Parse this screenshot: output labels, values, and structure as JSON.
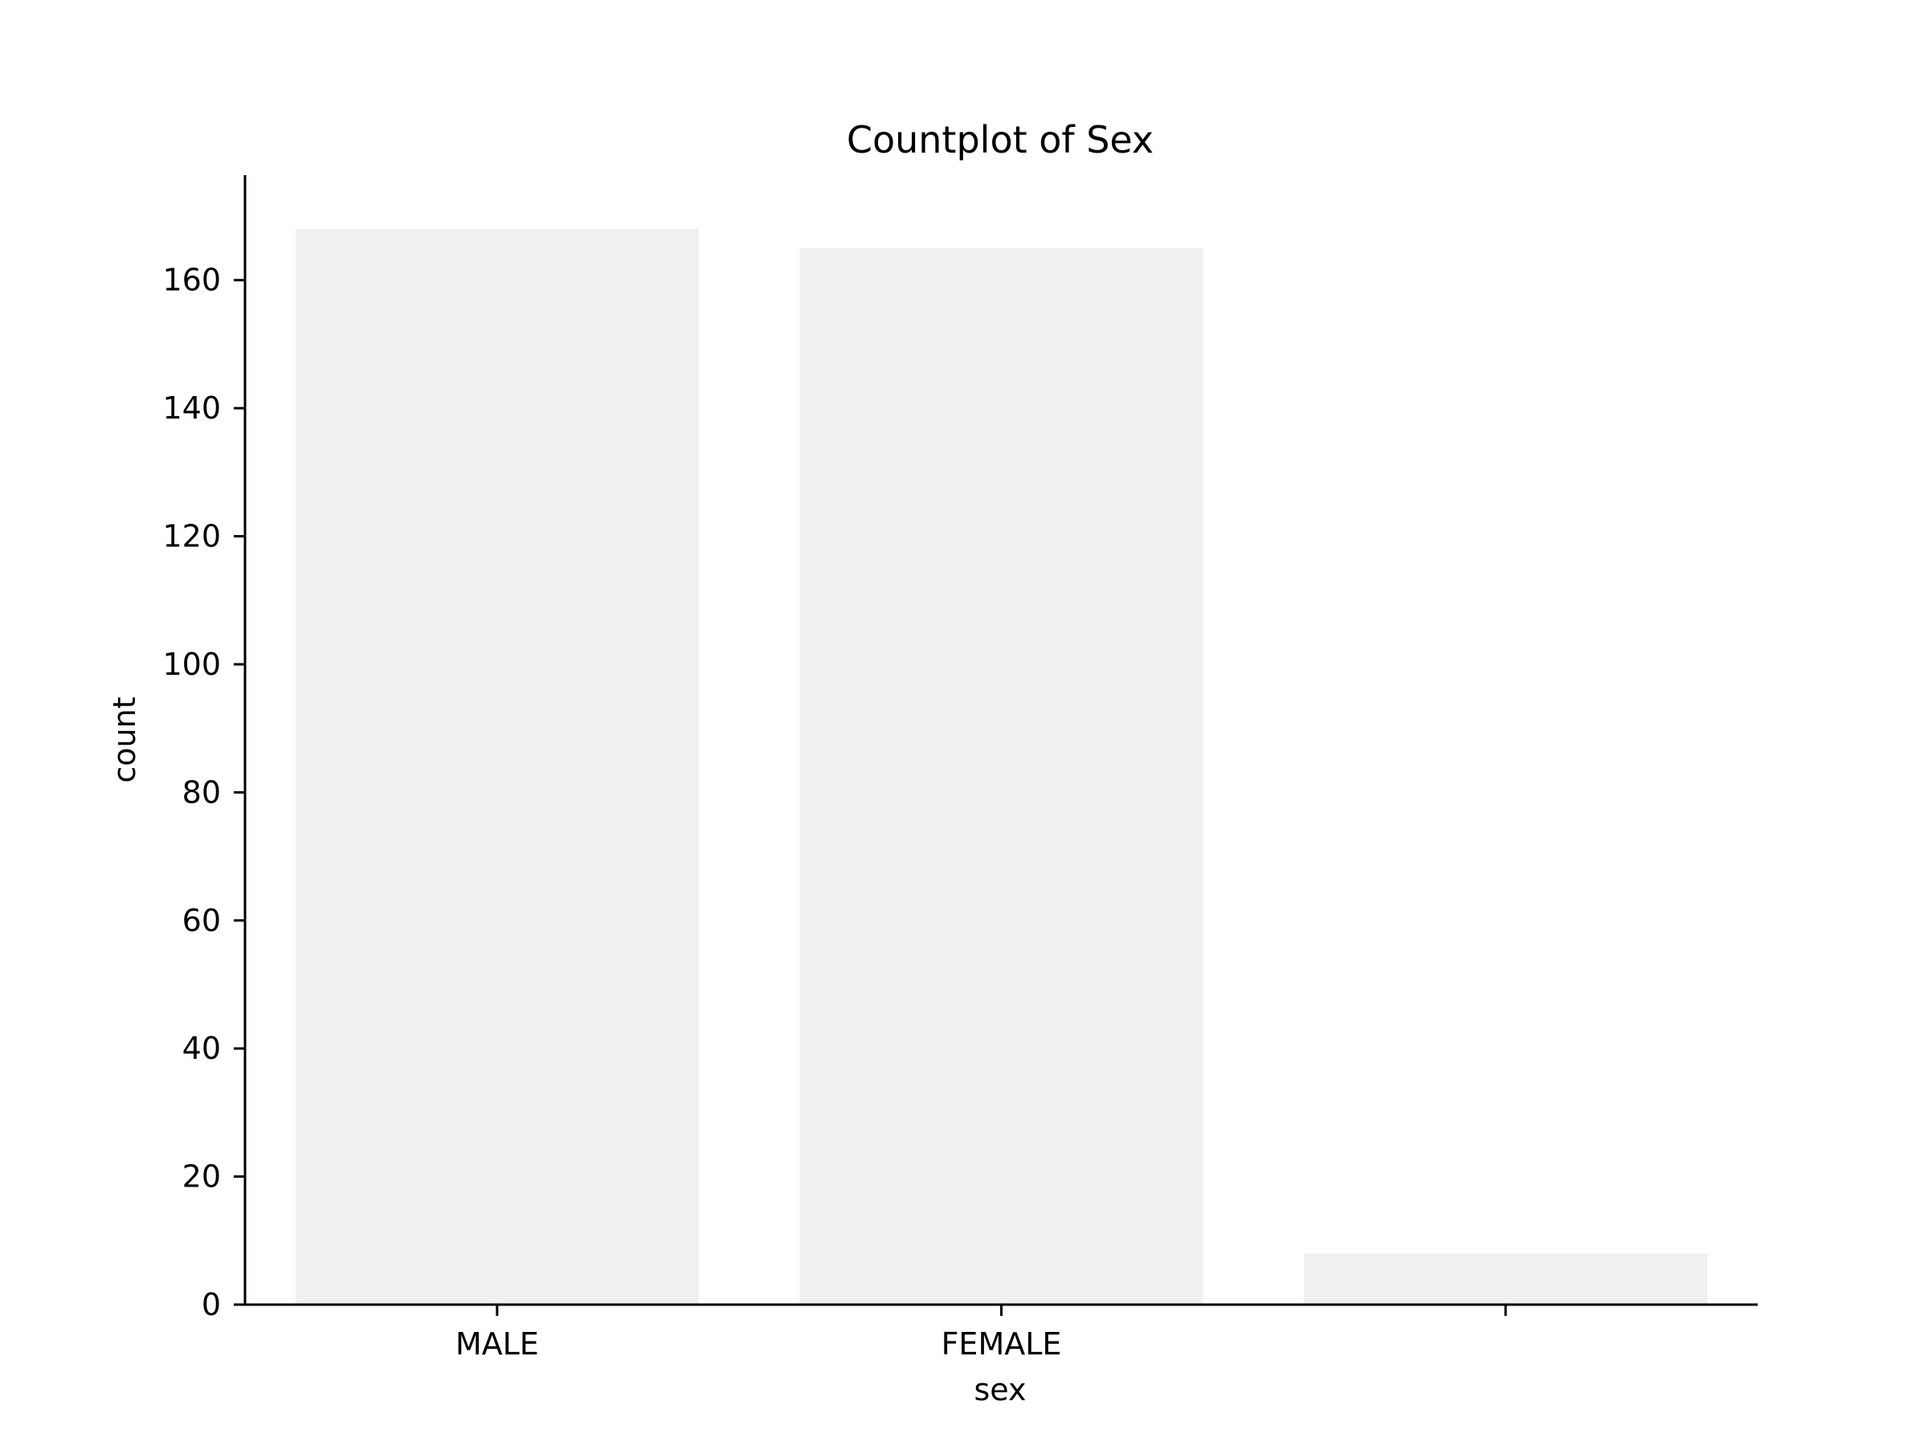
{
  "chart_data": {
    "type": "bar",
    "title": "Countplot of Sex",
    "xlabel": "sex",
    "ylabel": "count",
    "categories": [
      "MALE",
      "FEMALE",
      ""
    ],
    "values": [
      168,
      165,
      8
    ],
    "ylim": [
      0,
      176.4
    ],
    "yticks": [
      "0",
      "20",
      "40",
      "60",
      "80",
      "100",
      "120",
      "140",
      "160"
    ],
    "grid": false,
    "legend": "none",
    "bar_color": "#f0f0f0",
    "axis_color": "#000000"
  }
}
